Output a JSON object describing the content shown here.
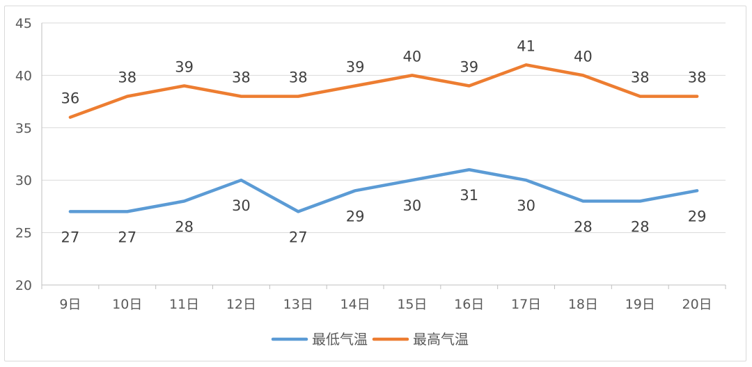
{
  "chart_data": {
    "type": "line",
    "categories": [
      "9日",
      "10日",
      "11日",
      "12日",
      "13日",
      "14日",
      "15日",
      "16日",
      "17日",
      "18日",
      "19日",
      "20日"
    ],
    "series": [
      {
        "name": "最低气温",
        "color": "#5b9bd5",
        "values": [
          27,
          27,
          28,
          30,
          27,
          29,
          30,
          31,
          30,
          28,
          28,
          29
        ],
        "label_position": "below"
      },
      {
        "name": "最高气温",
        "color": "#ed7d31",
        "values": [
          36,
          38,
          39,
          38,
          38,
          39,
          40,
          39,
          41,
          40,
          38,
          38
        ],
        "label_position": "above"
      }
    ],
    "ylim": [
      20,
      45
    ],
    "yticks": [
      20,
      25,
      30,
      35,
      40,
      45
    ],
    "grid": true,
    "legend": "bottom",
    "title": "",
    "xlabel": "",
    "ylabel": ""
  }
}
